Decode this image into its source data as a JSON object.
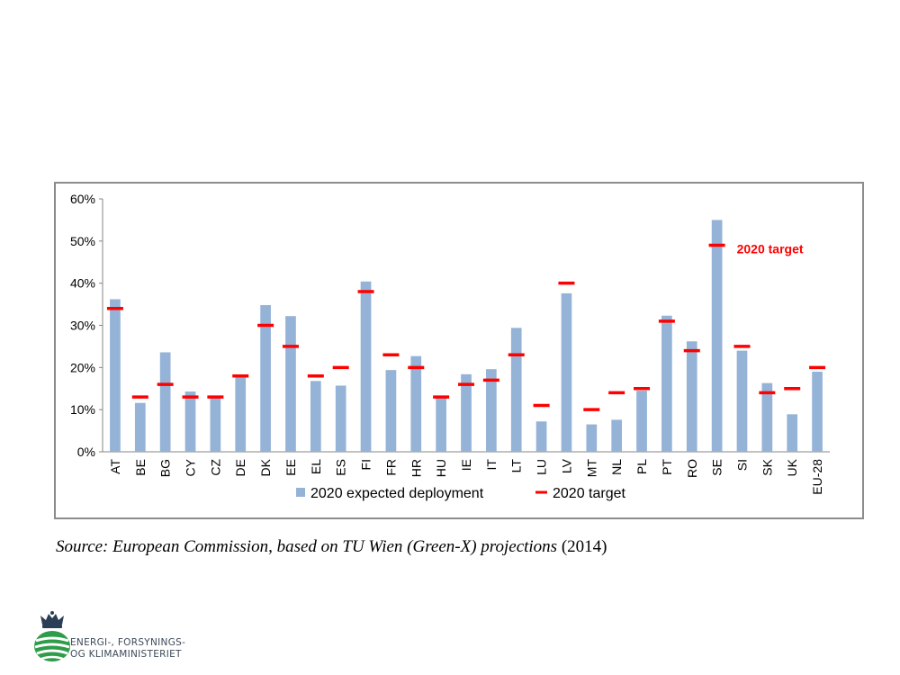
{
  "chart_data": {
    "type": "bar",
    "categories": [
      "AT",
      "BE",
      "BG",
      "CY",
      "CZ",
      "DE",
      "DK",
      "EE",
      "EL",
      "ES",
      "FI",
      "FR",
      "HR",
      "HU",
      "IE",
      "IT",
      "LT",
      "LU",
      "LV",
      "MT",
      "NL",
      "PL",
      "PT",
      "RO",
      "SE",
      "SI",
      "SK",
      "UK",
      "EU-28"
    ],
    "series": [
      {
        "name": "2020 expected deployment",
        "type": "bar",
        "color": "#95b3d7",
        "values": [
          36.2,
          11.6,
          23.6,
          14.3,
          13.0,
          18.0,
          34.8,
          32.2,
          16.8,
          15.7,
          40.4,
          19.4,
          22.7,
          12.8,
          18.4,
          19.6,
          29.4,
          7.2,
          37.6,
          6.5,
          7.6,
          14.5,
          32.3,
          26.2,
          55.0,
          24.0,
          16.3,
          8.9,
          19.0
        ]
      },
      {
        "name": "2020 target",
        "type": "marker",
        "color": "#ff0000",
        "values": [
          34,
          13,
          16,
          13,
          13,
          18,
          30,
          25,
          18,
          20,
          38,
          23,
          20,
          13,
          16,
          17,
          23,
          11,
          40,
          10,
          14,
          15,
          31,
          24,
          49,
          25,
          14,
          15,
          20
        ]
      }
    ],
    "ylim": [
      0,
      60
    ],
    "yticks": [
      "0%",
      "10%",
      "20%",
      "30%",
      "40%",
      "50%",
      "60%"
    ],
    "annotation": "2020 target",
    "legend_position": "bottom",
    "grid": false
  },
  "source": {
    "prefix": "Source: European Commission, based on TU Wien (Green-X) projections",
    "year": " (2014)"
  },
  "logo": {
    "line1": "ENERGI-, FORSYNINGS-",
    "line2": "OG KLIMAMINISTERIET"
  }
}
